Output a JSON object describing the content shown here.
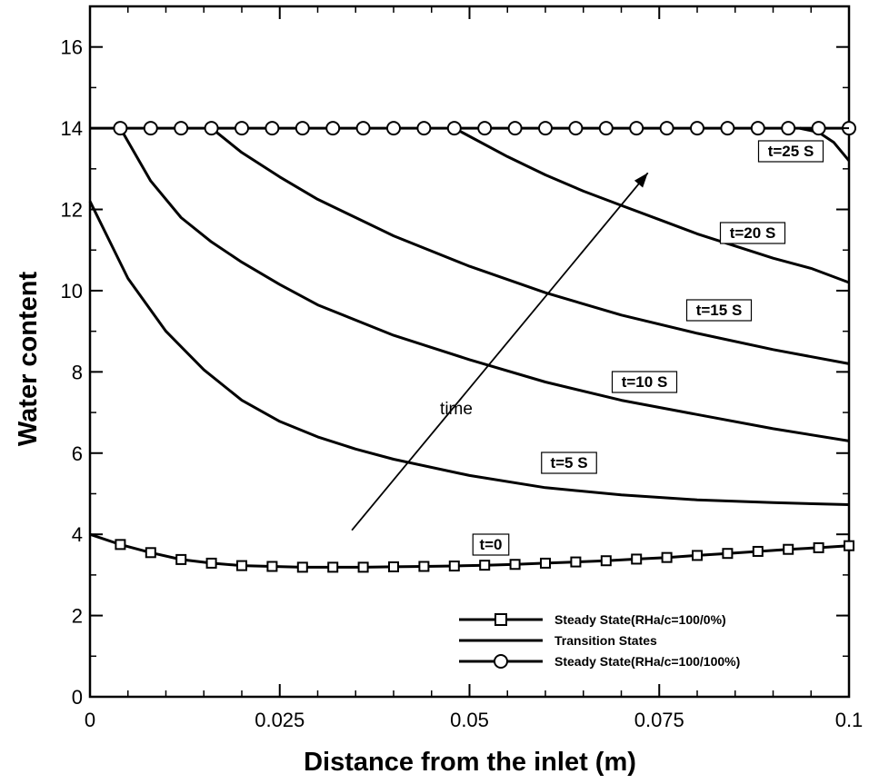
{
  "chart_data": {
    "type": "line",
    "xlabel": "Distance from the inlet (m)",
    "ylabel": "Water content",
    "xlim": [
      0,
      0.1
    ],
    "ylim": [
      0,
      17
    ],
    "xticks": [
      0,
      0.025,
      0.05,
      0.075,
      0.1
    ],
    "xtick_labels": [
      "0",
      "0.025",
      "0.05",
      "0.075",
      "0.1"
    ],
    "yticks": [
      0,
      2,
      4,
      6,
      8,
      10,
      12,
      14,
      16
    ],
    "ytick_labels": [
      "0",
      "2",
      "4",
      "6",
      "8",
      "10",
      "12",
      "14",
      "16"
    ],
    "grid": false,
    "legend_position": "bottom-right",
    "legend": [
      {
        "label": "Steady State(RHa/c=100/0%)",
        "marker": "square"
      },
      {
        "label": "Transition States",
        "marker": "none"
      },
      {
        "label": "Steady State(RHa/c=100/100%)",
        "marker": "circle"
      }
    ],
    "annotations": [
      {
        "text": "time",
        "kind": "arrow",
        "from": [
          0.0345,
          4.1
        ],
        "to": [
          0.0735,
          12.9
        ]
      }
    ],
    "series": [
      {
        "name": "Steady State(RHa/c=100/0%)",
        "label": "t=0",
        "marker": "square",
        "x": [
          0,
          0.004,
          0.008,
          0.012,
          0.016,
          0.02,
          0.024,
          0.028,
          0.032,
          0.036,
          0.04,
          0.044,
          0.048,
          0.052,
          0.056,
          0.06,
          0.064,
          0.068,
          0.072,
          0.076,
          0.08,
          0.084,
          0.088,
          0.092,
          0.096,
          0.1
        ],
        "y": [
          4.0,
          3.75,
          3.55,
          3.38,
          3.29,
          3.23,
          3.21,
          3.19,
          3.19,
          3.19,
          3.2,
          3.21,
          3.22,
          3.24,
          3.26,
          3.29,
          3.32,
          3.35,
          3.39,
          3.43,
          3.48,
          3.53,
          3.58,
          3.63,
          3.67,
          3.72
        ]
      },
      {
        "name": "Transition States",
        "label": "t=5 S",
        "marker": "none",
        "x": [
          0,
          0.005,
          0.01,
          0.015,
          0.02,
          0.025,
          0.03,
          0.035,
          0.04,
          0.05,
          0.06,
          0.07,
          0.08,
          0.09,
          0.1
        ],
        "y": [
          12.2,
          10.3,
          9.0,
          8.05,
          7.3,
          6.78,
          6.4,
          6.1,
          5.85,
          5.45,
          5.15,
          4.97,
          4.85,
          4.78,
          4.73
        ]
      },
      {
        "name": "Transition States",
        "label": "t=10 S",
        "marker": "none",
        "x": [
          0.004,
          0.008,
          0.012,
          0.016,
          0.02,
          0.025,
          0.03,
          0.04,
          0.05,
          0.06,
          0.07,
          0.08,
          0.09,
          0.1
        ],
        "y": [
          14.0,
          12.7,
          11.8,
          11.2,
          10.7,
          10.15,
          9.65,
          8.9,
          8.3,
          7.75,
          7.3,
          6.95,
          6.6,
          6.3
        ]
      },
      {
        "name": "Transition States",
        "label": "t=15 S",
        "marker": "none",
        "x": [
          0.016,
          0.02,
          0.025,
          0.03,
          0.035,
          0.04,
          0.05,
          0.06,
          0.07,
          0.08,
          0.09,
          0.1
        ],
        "y": [
          14.0,
          13.4,
          12.8,
          12.25,
          11.8,
          11.35,
          10.6,
          9.95,
          9.4,
          8.95,
          8.55,
          8.2
        ]
      },
      {
        "name": "Transition States",
        "label": "t=20 S",
        "marker": "none",
        "x": [
          0.048,
          0.055,
          0.06,
          0.065,
          0.07,
          0.075,
          0.08,
          0.085,
          0.09,
          0.095,
          0.1
        ],
        "y": [
          14.0,
          13.3,
          12.85,
          12.45,
          12.1,
          11.75,
          11.4,
          11.1,
          10.8,
          10.55,
          10.2
        ]
      },
      {
        "name": "Transition States",
        "label": "t=25 S",
        "marker": "none",
        "x": [
          0.0935,
          0.096,
          0.098,
          0.1
        ],
        "y": [
          14.0,
          13.9,
          13.65,
          13.2
        ]
      },
      {
        "name": "Steady State(RHa/c=100/100%)",
        "marker": "circle",
        "x": [
          0,
          0.004,
          0.008,
          0.012,
          0.016,
          0.02,
          0.024,
          0.028,
          0.032,
          0.036,
          0.04,
          0.044,
          0.048,
          0.052,
          0.056,
          0.06,
          0.064,
          0.068,
          0.072,
          0.076,
          0.08,
          0.084,
          0.088,
          0.092,
          0.096,
          0.1
        ],
        "y": [
          14,
          14,
          14,
          14,
          14,
          14,
          14,
          14,
          14,
          14,
          14,
          14,
          14,
          14,
          14,
          14,
          14,
          14,
          14,
          14,
          14,
          14,
          14,
          14,
          14,
          14
        ]
      }
    ]
  }
}
